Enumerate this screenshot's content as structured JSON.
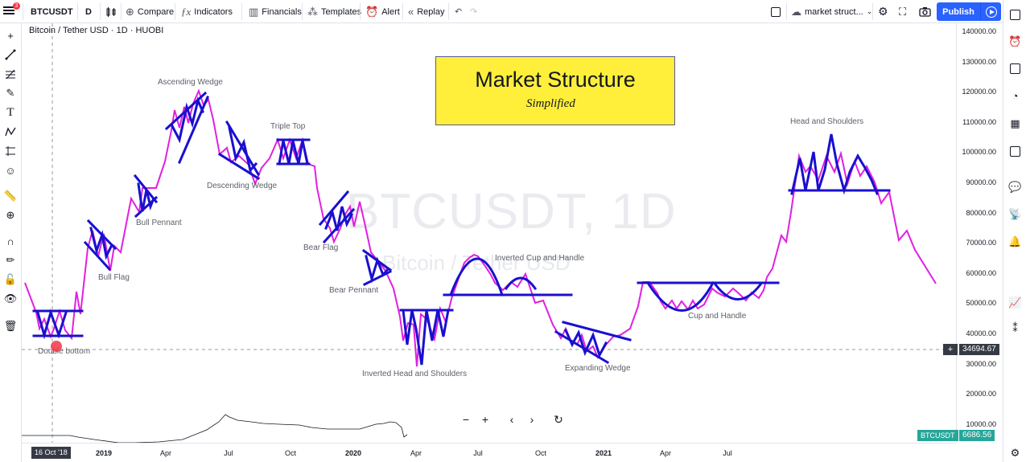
{
  "toolbar": {
    "notif_count": "3",
    "symbol": "BTCUSDT",
    "interval": "D",
    "compare": "Compare",
    "indicators": "Indicators",
    "financials": "Financials",
    "templates": "Templates",
    "alert": "Alert",
    "replay": "Replay",
    "layout_name": "market struct...",
    "publish": "Publish"
  },
  "chart": {
    "header": "Bitcoin / Tether USD · 1D · HUOBI",
    "watermark_symbol": "BTCUSDT, 1D",
    "watermark_name": "Bitcoin / Tether USD",
    "title_box": {
      "title": "Market Structure",
      "subtitle": "Simplified"
    },
    "y_ticks": [
      "140000.00",
      "130000.00",
      "120000.00",
      "110000.00",
      "100000.00",
      "90000.00",
      "80000.00",
      "70000.00",
      "60000.00",
      "50000.00",
      "40000.00",
      "30000.00",
      "20000.00",
      "10000.00"
    ],
    "x_ticks": [
      {
        "label": "2019",
        "bold": true
      },
      {
        "label": "Apr",
        "bold": false
      },
      {
        "label": "Jul",
        "bold": false
      },
      {
        "label": "Oct",
        "bold": false
      },
      {
        "label": "2020",
        "bold": true
      },
      {
        "label": "Apr",
        "bold": false
      },
      {
        "label": "Jul",
        "bold": false
      },
      {
        "label": "Oct",
        "bold": false
      },
      {
        "label": "2021",
        "bold": true
      },
      {
        "label": "Apr",
        "bold": false
      },
      {
        "label": "Jul",
        "bold": false
      }
    ],
    "crosshair_date": "16 Oct '18",
    "crosshair_price": "34694.67",
    "last_price_symbol": "BTCUSDT",
    "last_price": "6686.56",
    "patterns": {
      "double_bottom": "Double bottom",
      "bull_flag": "Bull Flag",
      "bull_pennant": "Bull Pennant",
      "ascending_wedge": "Ascending Wedge",
      "descending_wedge": "Descending Wedge",
      "triple_top": "Triple Top",
      "bear_flag": "Bear Flag",
      "bear_pennant": "Bear Pennant",
      "inverted_head_shoulders": "Inverted Head and Shoulders",
      "inverted_cup_handle": "Inverted Cup and Handle",
      "expanding_wedge": "Expanding Wedge",
      "cup_handle": "Cup and Handle",
      "head_shoulders": "Head and Shoulders"
    },
    "colors": {
      "price_line": "#e020e0",
      "pattern_lines": "#1a0fcf",
      "title_box": "#ffef3a",
      "publish": "#2962ff",
      "last_price_tag": "#26a69a"
    }
  }
}
